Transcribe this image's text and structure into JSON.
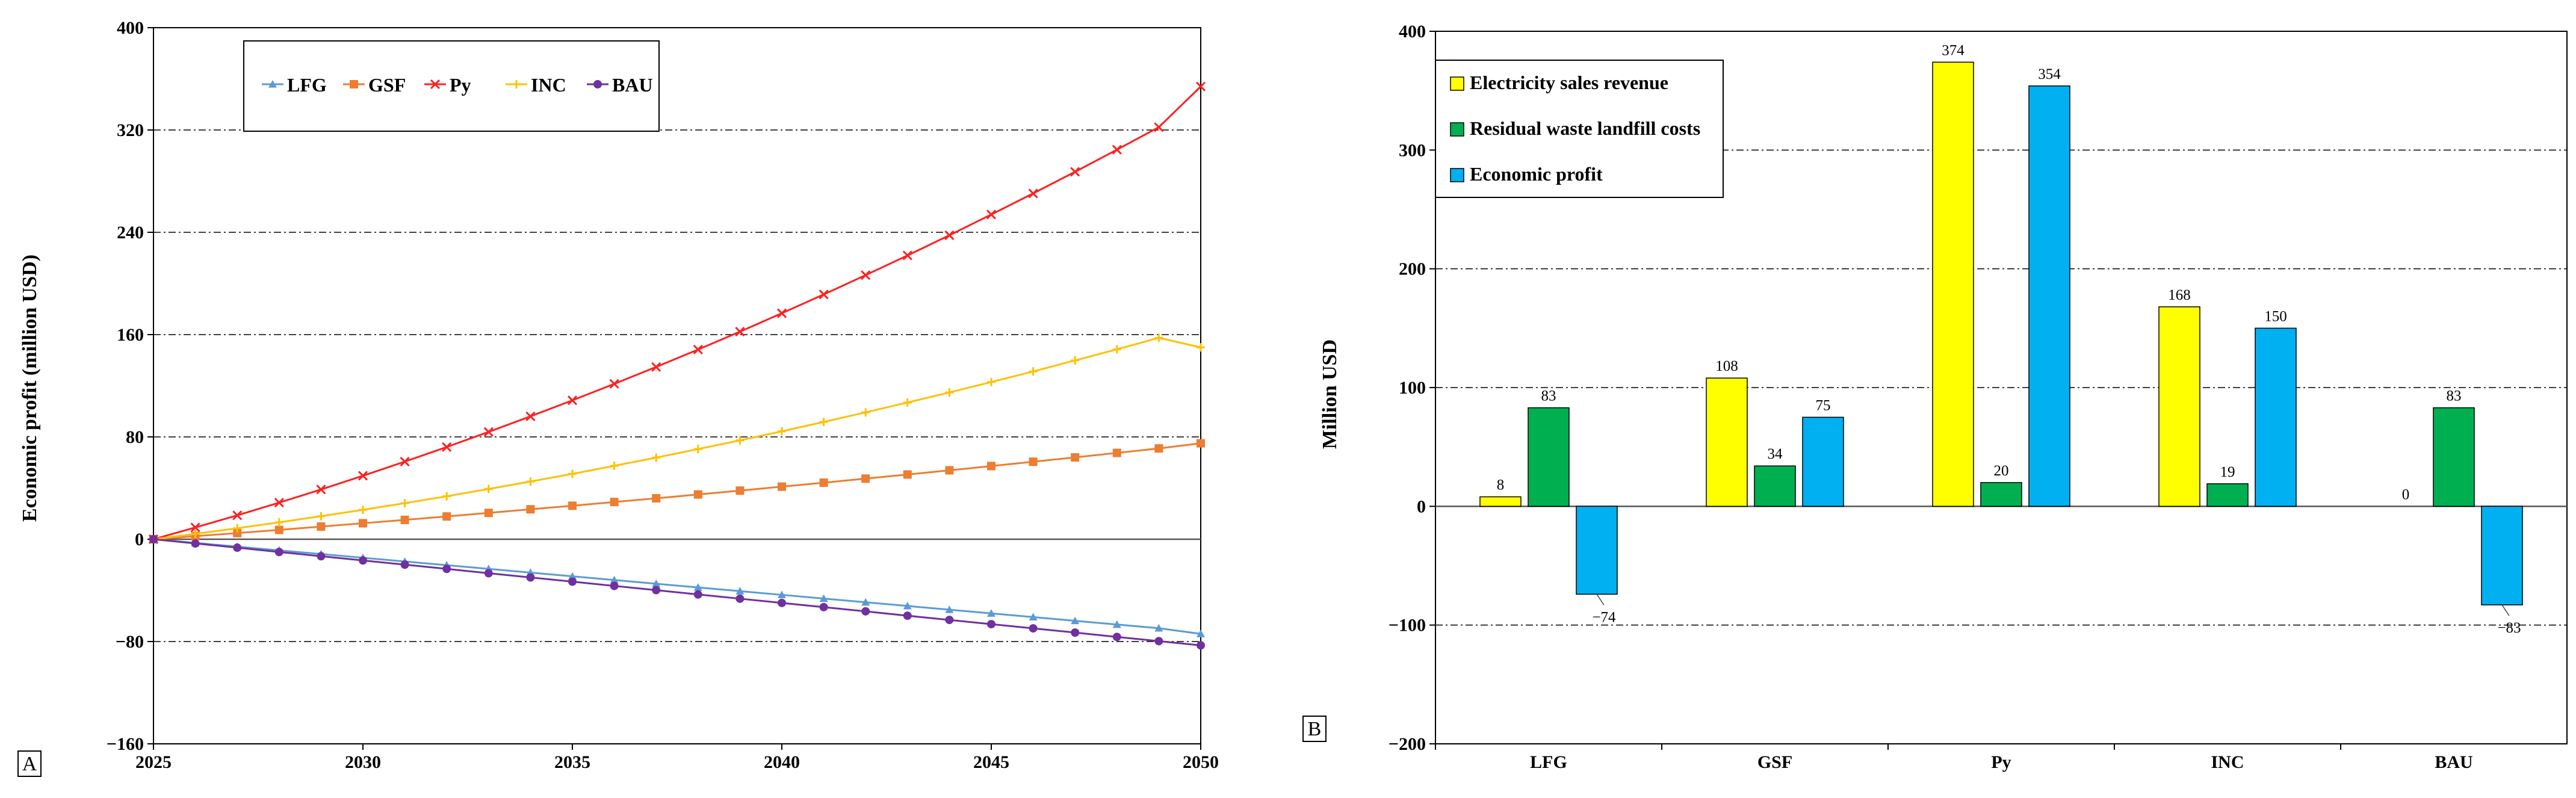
{
  "chart_data": [
    {
      "type": "line",
      "panel_label": "A",
      "ylabel": "Economic profit (million USD)",
      "xlim": [
        2025,
        2050
      ],
      "ylim": [
        -160,
        400
      ],
      "x_ticks": [
        2025,
        2030,
        2035,
        2040,
        2045,
        2050
      ],
      "y_ticks": [
        -160,
        -80,
        0,
        80,
        160,
        240,
        320,
        400
      ],
      "grid": "horizontal dash-dot",
      "legend_position": "top-left",
      "x": [
        2025,
        2026,
        2027,
        2028,
        2029,
        2030,
        2031,
        2032,
        2033,
        2034,
        2035,
        2036,
        2037,
        2038,
        2039,
        2040,
        2041,
        2042,
        2043,
        2044,
        2045,
        2046,
        2047,
        2048,
        2049,
        2050
      ],
      "series": [
        {
          "name": "LFG",
          "color": "#5b9bd5",
          "marker": "triangle",
          "values": [
            0,
            -2.9,
            -5.8,
            -8.7,
            -11.6,
            -14.5,
            -17.4,
            -20.3,
            -23.2,
            -26.1,
            -29.0,
            -31.9,
            -34.8,
            -37.7,
            -40.6,
            -43.5,
            -46.4,
            -49.3,
            -52.2,
            -55.1,
            -58.0,
            -60.9,
            -63.8,
            -66.7,
            -69.6,
            -74
          ]
        },
        {
          "name": "GSF",
          "color": "#ed7d31",
          "marker": "square",
          "values": [
            0,
            2.4,
            4.8,
            7.3,
            9.9,
            12.5,
            15.1,
            17.8,
            20.6,
            23.4,
            26.2,
            29.1,
            32.0,
            35.0,
            38.0,
            41.1,
            44.2,
            47.4,
            50.6,
            53.9,
            57.2,
            60.6,
            64.0,
            67.5,
            71.0,
            75
          ]
        },
        {
          "name": "Py",
          "color": "#ff2020",
          "marker": "x",
          "values": [
            0,
            9.2,
            18.7,
            28.6,
            38.9,
            49.6,
            60.7,
            72.1,
            83.9,
            96.1,
            108.6,
            121.5,
            134.7,
            148.3,
            162.3,
            176.7,
            191.4,
            206.5,
            221.9,
            237.7,
            253.9,
            270.4,
            287.3,
            304.6,
            322.2,
            354
          ]
        },
        {
          "name": "INC",
          "color": "#ffc000",
          "marker": "plus",
          "values": [
            0,
            4.2,
            8.6,
            13.2,
            18.0,
            23.0,
            28.2,
            33.6,
            39.3,
            45.1,
            51.1,
            57.4,
            63.8,
            70.5,
            77.3,
            84.4,
            91.7,
            99.2,
            106.9,
            114.8,
            122.9,
            131.2,
            139.8,
            148.5,
            157.5,
            150
          ]
        },
        {
          "name": "BAU",
          "color": "#7030a0",
          "marker": "circle",
          "values": [
            0,
            -3.3,
            -6.6,
            -10.0,
            -13.3,
            -16.6,
            -19.9,
            -23.2,
            -26.6,
            -29.9,
            -33.2,
            -36.5,
            -39.8,
            -43.2,
            -46.5,
            -49.8,
            -53.1,
            -56.4,
            -59.8,
            -63.1,
            -66.4,
            -69.7,
            -73.0,
            -76.4,
            -79.7,
            -83
          ]
        }
      ]
    },
    {
      "type": "bar",
      "panel_label": "B",
      "ylabel": "Million USD",
      "ylim": [
        -200,
        400
      ],
      "y_ticks": [
        -200,
        -100,
        0,
        100,
        200,
        300,
        400
      ],
      "grid": "horizontal dash-dot",
      "legend_position": "top-left",
      "categories": [
        "LFG",
        "GSF",
        "Py",
        "INC",
        "BAU"
      ],
      "series": [
        {
          "name": "Electricity sales revenue",
          "color": "#ffff00",
          "values": [
            8,
            108,
            374,
            168,
            0
          ]
        },
        {
          "name": "Residual waste landfill costs",
          "color": "#00b050",
          "values": [
            83,
            34,
            20,
            19,
            83
          ]
        },
        {
          "name": "Economic profit",
          "color": "#00b0f0",
          "values": [
            -74,
            75,
            354,
            150,
            -83
          ]
        }
      ],
      "data_labels": [
        [
          "8",
          "83",
          "−74"
        ],
        [
          "108",
          "34",
          "75"
        ],
        [
          "374",
          "20",
          "354"
        ],
        [
          "168",
          "19",
          "150"
        ],
        [
          "0",
          "83",
          "−83"
        ]
      ]
    }
  ]
}
